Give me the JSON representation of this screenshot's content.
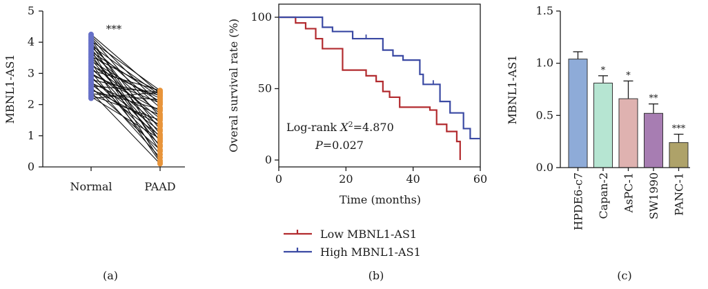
{
  "colors": {
    "axis": "#1a1a1a",
    "normal": "#6670c8",
    "paad": "#e8943a",
    "pair_line": "#111111",
    "low": "#b22a2e",
    "high": "#3a49a3",
    "bar_edge": "#333333"
  },
  "chart_data": [
    {
      "type": "scatter",
      "panel_label": "(a)",
      "categories": [
        "Normal",
        "PAAD"
      ],
      "ylabel": "MBNL1-AS1",
      "ylim": [
        0,
        5
      ],
      "yticks": [
        0,
        1,
        2,
        3,
        4,
        5
      ],
      "significance": "***",
      "paired": true,
      "series": [
        {
          "name": "Normal",
          "values": [
            4.25,
            4.2,
            4.15,
            4.1,
            4.05,
            4.0,
            3.95,
            3.9,
            3.85,
            3.8,
            3.75,
            3.7,
            3.65,
            3.6,
            3.55,
            3.5,
            3.45,
            3.4,
            3.35,
            3.3,
            3.25,
            3.2,
            3.15,
            3.1,
            3.05,
            3.0,
            2.95,
            2.9,
            2.85,
            2.8,
            2.75,
            2.7,
            2.65,
            2.6,
            2.55,
            2.5,
            2.45,
            2.4,
            2.35,
            2.3,
            2.25,
            2.2
          ]
        },
        {
          "name": "PAAD",
          "values": [
            2.35,
            2.0,
            1.6,
            0.8,
            2.45,
            1.2,
            0.5,
            2.3,
            1.9,
            1.05,
            0.2,
            2.25,
            1.7,
            0.65,
            2.4,
            1.4,
            0.95,
            2.1,
            0.15,
            1.55,
            2.2,
            0.85,
            1.3,
            2.45,
            0.4,
            1.8,
            2.05,
            0.7,
            1.15,
            2.3,
            0.3,
            1.65,
            1.0,
            2.4,
            0.55,
            1.35,
            1.85,
            0.1,
            2.15,
            1.5,
            0.9,
            2.4
          ]
        }
      ]
    },
    {
      "type": "line",
      "step": true,
      "panel_label": "(b)",
      "xlabel": "Time (months)",
      "ylabel": "Overal survival rate (%)",
      "xlim": [
        0,
        60
      ],
      "ylim": [
        0,
        100
      ],
      "xticks": [
        0,
        20,
        40,
        60
      ],
      "yticks": [
        0,
        50,
        100
      ],
      "annotation_prefix": "Log-rank ",
      "annotation_stat": "X",
      "annotation_sup": "2",
      "annotation_value": "=4.870",
      "annotation_p_label": "P",
      "annotation_p_value": "=0.027",
      "series": [
        {
          "name": "Low MBNL1-AS1",
          "x": [
            0,
            3,
            5,
            8,
            11,
            13,
            19,
            26,
            29,
            31,
            33,
            36,
            45,
            47,
            50,
            52,
            53,
            54
          ],
          "y": [
            100,
            100,
            96,
            92,
            85,
            78,
            63,
            59,
            55,
            48,
            44,
            37,
            35,
            25,
            20,
            20,
            13,
            0
          ],
          "censored_x": []
        },
        {
          "name": "High MBNL1-AS1",
          "x": [
            0,
            8,
            13,
            16,
            22,
            31,
            34,
            37,
            42,
            43,
            48,
            51,
            55,
            57,
            60
          ],
          "y": [
            100,
            100,
            93,
            90,
            85,
            77,
            73,
            70,
            60,
            53,
            41,
            33,
            22,
            15,
            15
          ],
          "censored_x": [
            26,
            46
          ]
        }
      ]
    },
    {
      "type": "bar",
      "panel_label": "(c)",
      "categories": [
        "HPDE6-c7",
        "Capan-2",
        "AsPC-1",
        "SW1990",
        "PANC-1"
      ],
      "values": [
        1.04,
        0.81,
        0.66,
        0.52,
        0.24
      ],
      "errors": [
        0.07,
        0.07,
        0.17,
        0.09,
        0.08
      ],
      "significance": [
        "",
        "*",
        "*",
        "**",
        "***"
      ],
      "colors": [
        "#8eabd8",
        "#b6e5d2",
        "#dfb2b0",
        "#a77db2",
        "#aea269"
      ],
      "ylabel": "MBNL1-AS1",
      "ylim": [
        0,
        1.5
      ],
      "yticks": [
        "0.0",
        "0.5",
        "1.0",
        "1.5"
      ]
    }
  ]
}
